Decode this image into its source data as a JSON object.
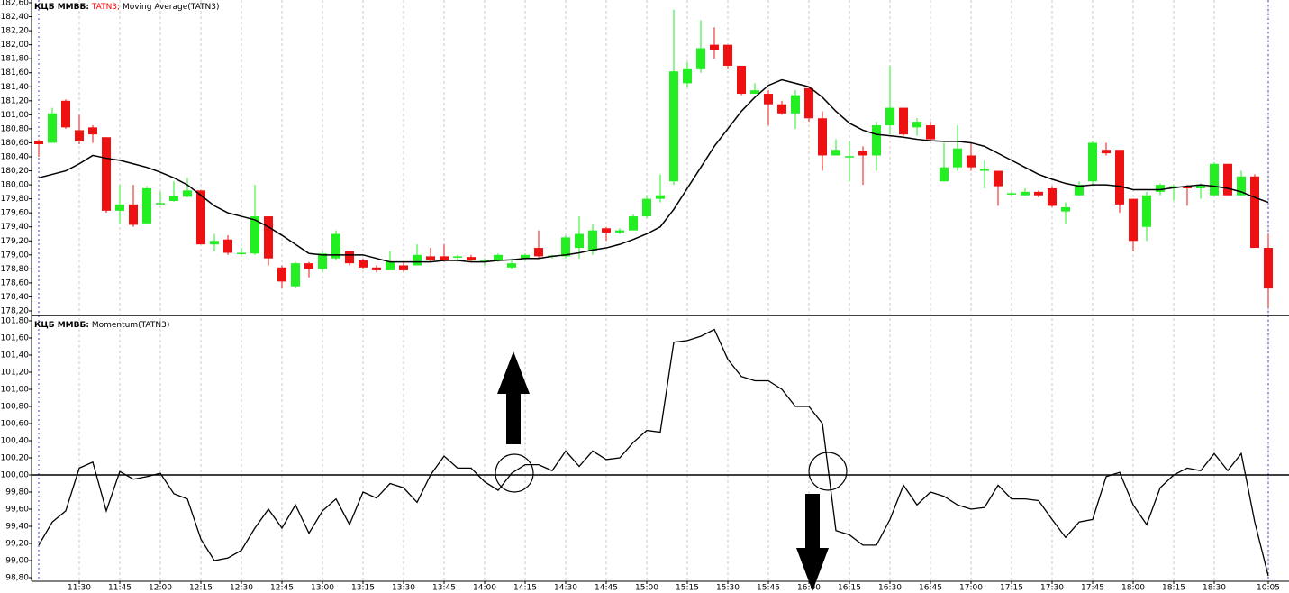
{
  "chart_data": [
    {
      "type": "candlestick",
      "source": "КЦБ ММВБ:",
      "symbol": "TATN3;",
      "symbol_color": "#ff0000",
      "indicator": "Moving Average(TATN3)",
      "up_color": "#22ee22",
      "down_color": "#ee1111",
      "open": [
        180.63,
        180.6,
        181.2,
        180.78,
        180.82,
        180.68,
        179.63,
        179.72,
        179.45,
        179.72,
        179.77,
        179.83,
        179.92,
        179.15,
        179.22,
        179.02,
        179.02,
        179.55,
        178.82,
        178.55,
        178.88,
        178.8,
        178.95,
        179.05,
        178.92,
        178.82,
        178.78,
        178.85,
        178.85,
        178.98,
        178.98,
        178.97,
        178.97,
        178.92,
        178.92,
        178.82,
        178.95,
        179.1,
        178.98,
        178.98,
        179.1,
        179.05,
        179.38,
        179.32,
        179.35,
        179.55,
        179.8,
        180.05,
        181.45,
        181.65,
        182.0,
        182.0,
        181.7,
        181.3,
        181.3,
        181.15,
        181.02,
        181.38,
        180.95,
        180.42,
        180.4,
        180.48,
        180.42,
        180.85,
        181.1,
        180.82,
        180.85,
        180.05,
        180.25,
        180.42,
        180.2,
        180.2,
        179.87,
        179.85,
        179.9,
        179.95,
        179.62,
        179.85,
        180.05,
        180.5,
        180.5,
        179.8,
        179.4,
        179.9,
        179.95,
        179.98,
        179.95,
        179.85,
        180.3,
        179.85,
        180.12,
        179.1
      ],
      "high": [
        180.65,
        181.1,
        181.22,
        181.0,
        180.85,
        180.68,
        180.0,
        180.0,
        179.98,
        179.9,
        180.05,
        180.1,
        179.92,
        179.3,
        179.28,
        179.1,
        180.0,
        179.55,
        178.85,
        178.9,
        178.9,
        179.05,
        179.35,
        179.05,
        178.95,
        178.85,
        179.05,
        178.9,
        179.15,
        179.1,
        179.15,
        179.0,
        179.0,
        178.95,
        179.02,
        178.95,
        179.02,
        179.35,
        179.0,
        179.28,
        179.55,
        179.45,
        179.4,
        179.38,
        179.58,
        179.85,
        180.15,
        182.5,
        181.75,
        182.35,
        182.25,
        182.0,
        181.7,
        181.45,
        181.35,
        181.2,
        181.35,
        181.4,
        181.05,
        180.65,
        180.62,
        180.55,
        180.9,
        181.7,
        181.1,
        180.95,
        180.9,
        180.6,
        180.85,
        180.6,
        180.35,
        180.2,
        179.9,
        179.95,
        179.92,
        179.98,
        179.75,
        180.05,
        180.62,
        180.6,
        180.5,
        179.8,
        179.9,
        180.02,
        180.0,
        180.0,
        180.02,
        180.32,
        180.3,
        180.2,
        180.15,
        179.3
      ],
      "low": [
        180.4,
        180.6,
        180.8,
        180.58,
        180.6,
        179.6,
        179.45,
        179.4,
        179.45,
        179.72,
        179.76,
        179.82,
        179.15,
        179.05,
        179.0,
        179.0,
        179.0,
        178.85,
        178.52,
        178.52,
        178.68,
        178.75,
        178.92,
        178.85,
        178.8,
        178.75,
        178.78,
        178.76,
        178.85,
        178.9,
        178.9,
        178.9,
        178.9,
        178.85,
        178.9,
        178.8,
        178.92,
        178.95,
        178.95,
        178.95,
        178.95,
        179.0,
        179.2,
        179.3,
        179.35,
        179.52,
        179.75,
        180.0,
        181.4,
        181.6,
        181.8,
        181.65,
        181.28,
        181.3,
        180.85,
        181.0,
        180.8,
        180.9,
        180.2,
        180.42,
        180.05,
        180.0,
        180.2,
        180.72,
        180.7,
        180.7,
        180.62,
        180.05,
        180.2,
        180.2,
        179.95,
        179.7,
        179.85,
        179.85,
        179.82,
        179.68,
        179.45,
        179.85,
        180.0,
        180.42,
        179.6,
        179.05,
        179.2,
        179.85,
        179.78,
        179.7,
        179.8,
        179.85,
        179.85,
        179.85,
        179.1,
        178.25
      ],
      "close": [
        180.58,
        181.02,
        180.82,
        180.62,
        180.72,
        179.63,
        179.72,
        179.43,
        179.95,
        179.74,
        179.84,
        179.92,
        179.15,
        179.2,
        179.03,
        179.03,
        179.55,
        178.95,
        178.62,
        178.88,
        178.8,
        179.02,
        179.3,
        178.88,
        178.82,
        178.78,
        178.9,
        178.78,
        179.0,
        178.92,
        178.92,
        178.98,
        178.92,
        178.93,
        179.0,
        178.88,
        179.0,
        178.98,
        178.99,
        179.25,
        179.3,
        179.35,
        179.32,
        179.35,
        179.55,
        179.8,
        179.85,
        181.62,
        181.65,
        181.95,
        181.92,
        181.7,
        181.3,
        181.35,
        181.15,
        181.02,
        181.28,
        180.95,
        180.42,
        180.5,
        180.41,
        180.42,
        180.85,
        181.1,
        180.72,
        180.9,
        180.65,
        180.25,
        180.52,
        180.25,
        180.22,
        179.98,
        179.88,
        179.9,
        179.85,
        179.7,
        179.68,
        180.0,
        180.6,
        180.45,
        179.72,
        179.2,
        179.85,
        180.0,
        179.98,
        179.95,
        180.0,
        180.3,
        179.85,
        180.12,
        179.1,
        178.52
      ],
      "moving_average": {
        "color": "#000000",
        "values": [
          180.1,
          180.15,
          180.2,
          180.3,
          180.42,
          180.38,
          180.35,
          180.3,
          180.25,
          180.18,
          180.1,
          180.0,
          179.85,
          179.7,
          179.6,
          179.55,
          179.5,
          179.4,
          179.28,
          179.15,
          179.02,
          179.0,
          179.0,
          179.0,
          179.0,
          178.95,
          178.9,
          178.9,
          178.9,
          178.9,
          178.92,
          178.92,
          178.9,
          178.9,
          178.92,
          178.93,
          178.95,
          178.95,
          178.98,
          179.0,
          179.03,
          179.07,
          179.1,
          179.15,
          179.22,
          179.3,
          179.4,
          179.65,
          179.95,
          180.25,
          180.55,
          180.8,
          181.05,
          181.25,
          181.42,
          181.5,
          181.45,
          181.4,
          181.25,
          181.05,
          180.88,
          180.78,
          180.72,
          180.7,
          180.68,
          180.65,
          180.63,
          180.62,
          180.62,
          180.6,
          180.55,
          180.45,
          180.35,
          180.25,
          180.15,
          180.08,
          180.02,
          179.98,
          180.0,
          180.0,
          179.98,
          179.93,
          179.93,
          179.93,
          179.96,
          179.98,
          180.0,
          179.98,
          179.95,
          179.9,
          179.82,
          179.75
        ]
      },
      "ylim": [
        178.2,
        182.6
      ],
      "yticks": [
        {
          "value": 182.6,
          "label": "182,60"
        },
        {
          "value": 182.4,
          "label": "182,40"
        },
        {
          "value": 182.2,
          "label": "182,20"
        },
        {
          "value": 182.0,
          "label": "182,00"
        },
        {
          "value": 181.8,
          "label": "181,80"
        },
        {
          "value": 181.6,
          "label": "181,60"
        },
        {
          "value": 181.4,
          "label": "181,40"
        },
        {
          "value": 181.2,
          "label": "181,20"
        },
        {
          "value": 181.0,
          "label": "181,00"
        },
        {
          "value": 180.8,
          "label": "180,80"
        },
        {
          "value": 180.6,
          "label": "180,60"
        },
        {
          "value": 180.4,
          "label": "180,40"
        },
        {
          "value": 180.2,
          "label": "180,20"
        },
        {
          "value": 180.0,
          "label": "180,00"
        },
        {
          "value": 179.8,
          "label": "179,80"
        },
        {
          "value": 179.6,
          "label": "179,60"
        },
        {
          "value": 179.4,
          "label": "179,40"
        },
        {
          "value": 179.2,
          "label": "179,20"
        },
        {
          "value": 179.0,
          "label": "179,00"
        },
        {
          "value": 178.8,
          "label": "178,80"
        },
        {
          "value": 178.6,
          "label": "178,60"
        },
        {
          "value": 178.4,
          "label": "178,40"
        },
        {
          "value": 178.2,
          "label": "178,20"
        }
      ],
      "grid": true
    },
    {
      "type": "line",
      "source": "КЦБ ММВБ:",
      "indicator": "Momentum(TATN3)",
      "categories": [
        null,
        null,
        null,
        "11:30",
        null,
        null,
        "11:45",
        null,
        null,
        "12:00",
        null,
        null,
        "12:15",
        null,
        null,
        "12:30",
        null,
        null,
        "12:45",
        null,
        null,
        "13:00",
        null,
        null,
        "13:15",
        null,
        null,
        "13:30",
        null,
        null,
        "13:45",
        null,
        null,
        "14:00",
        null,
        null,
        "14:15",
        null,
        null,
        "14:30",
        null,
        null,
        "14:45",
        null,
        null,
        "15:00",
        null,
        null,
        "15:15",
        null,
        null,
        "15:30",
        null,
        null,
        "15:45",
        null,
        null,
        "16:00",
        null,
        null,
        "16:15",
        null,
        null,
        "16:30",
        null,
        null,
        "16:45",
        null,
        null,
        "17:00",
        null,
        null,
        "17:15",
        null,
        null,
        "17:30",
        null,
        null,
        "17:45",
        null,
        null,
        "18:00",
        null,
        null,
        "18:15",
        null,
        null,
        "18:30",
        null,
        null,
        null,
        "10:05"
      ],
      "values": [
        99.18,
        99.45,
        99.58,
        100.08,
        100.15,
        99.58,
        100.04,
        99.95,
        99.98,
        100.02,
        99.78,
        99.72,
        99.25,
        99.0,
        99.03,
        99.12,
        99.38,
        99.6,
        99.38,
        99.65,
        99.32,
        99.58,
        99.72,
        99.42,
        99.8,
        99.73,
        99.9,
        99.85,
        99.68,
        100.0,
        100.22,
        100.08,
        100.08,
        99.92,
        99.82,
        100.02,
        100.12,
        100.12,
        100.05,
        100.28,
        100.1,
        100.28,
        100.18,
        100.2,
        100.38,
        100.52,
        100.5,
        101.55,
        101.57,
        101.62,
        101.7,
        101.35,
        101.15,
        101.1,
        101.1,
        101.0,
        100.8,
        100.8,
        100.6,
        99.35,
        99.3,
        99.18,
        99.18,
        99.48,
        99.88,
        99.65,
        99.8,
        99.75,
        99.65,
        99.6,
        99.62,
        99.88,
        99.72,
        99.72,
        99.7,
        99.48,
        99.27,
        99.45,
        99.48,
        99.98,
        100.03,
        99.65,
        99.42,
        99.85,
        100.0,
        100.08,
        100.05,
        100.25,
        100.05,
        100.25,
        99.45,
        98.82
      ],
      "color": "#000000",
      "level": 100,
      "ylim": [
        98.8,
        101.8
      ],
      "yticks": [
        {
          "value": 101.8,
          "label": "101,80"
        },
        {
          "value": 101.6,
          "label": "101,60"
        },
        {
          "value": 101.4,
          "label": "101,40"
        },
        {
          "value": 101.2,
          "label": "101,20"
        },
        {
          "value": 101.0,
          "label": "101,00"
        },
        {
          "value": 100.8,
          "label": "100,80"
        },
        {
          "value": 100.6,
          "label": "100,60"
        },
        {
          "value": 100.4,
          "label": "100,40"
        },
        {
          "value": 100.2,
          "label": "100,20"
        },
        {
          "value": 100.0,
          "label": "100,00"
        },
        {
          "value": 99.8,
          "label": "99,80"
        },
        {
          "value": 99.6,
          "label": "99,60"
        },
        {
          "value": 99.4,
          "label": "99,40"
        },
        {
          "value": 99.2,
          "label": "99,20"
        },
        {
          "value": 99.0,
          "label": "99,00"
        },
        {
          "value": 98.8,
          "label": "98,80"
        }
      ],
      "grid": true
    }
  ]
}
